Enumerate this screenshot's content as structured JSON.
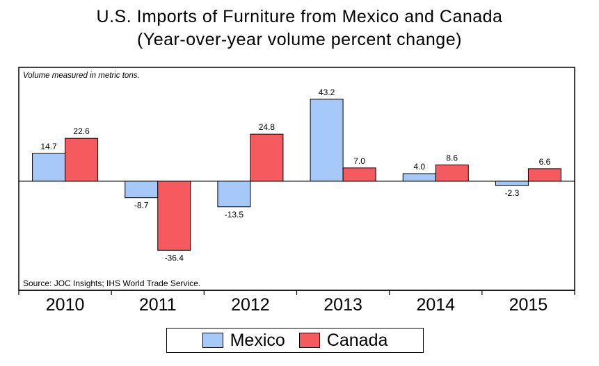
{
  "chart_data": {
    "type": "bar",
    "title": "U.S. Imports of Furniture from Mexico and Canada",
    "subtitle": "(Year-over-year volume percent change)",
    "note": "Volume measured in metric tons.",
    "source": "Source: JOC Insights; IHS World Trade Service.",
    "categories": [
      "2010",
      "2011",
      "2012",
      "2013",
      "2014",
      "2015"
    ],
    "series": [
      {
        "name": "Mexico",
        "color": "#a6c8f8",
        "values": [
          14.7,
          -8.7,
          -13.5,
          43.2,
          4.0,
          -2.3
        ]
      },
      {
        "name": "Canada",
        "color": "#f55a5e",
        "values": [
          22.6,
          -36.4,
          24.8,
          7.0,
          8.6,
          6.6
        ]
      }
    ],
    "ylim": [
      -57.5,
      60
    ],
    "grid": false,
    "legend_position": "bottom"
  }
}
